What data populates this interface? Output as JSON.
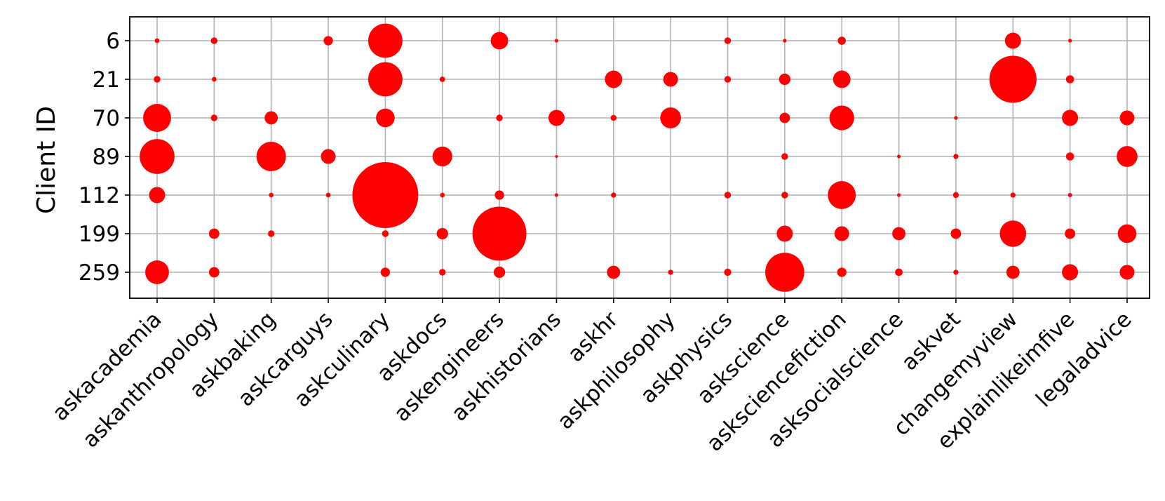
{
  "chart_data": {
    "type": "scatter",
    "ylabel": "Client ID",
    "xlabel": "",
    "title": "",
    "categories": [
      "askacademia",
      "askanthropology",
      "askbaking",
      "askcarguys",
      "askculinary",
      "askdocs",
      "askengineers",
      "askhistorians",
      "askhr",
      "askphilosophy",
      "askphysics",
      "askscience",
      "asksciencefiction",
      "asksocialscience",
      "askvet",
      "changemyview",
      "explainlikeimfive",
      "legaladvice"
    ],
    "clients": [
      "6",
      "21",
      "70",
      "89",
      "112",
      "199",
      "259"
    ],
    "grid": true,
    "marker_color": "#ff0000",
    "points": [
      {
        "x": "askacademia",
        "y": "6",
        "size": 0.5
      },
      {
        "x": "askacademia",
        "y": "21",
        "size": 1
      },
      {
        "x": "askacademia",
        "y": "70",
        "size": 18
      },
      {
        "x": "askacademia",
        "y": "89",
        "size": 28
      },
      {
        "x": "askacademia",
        "y": "112",
        "size": 6
      },
      {
        "x": "askacademia",
        "y": "259",
        "size": 13
      },
      {
        "x": "askanthropology",
        "y": "6",
        "size": 1
      },
      {
        "x": "askanthropology",
        "y": "21",
        "size": 0.5
      },
      {
        "x": "askanthropology",
        "y": "70",
        "size": 1
      },
      {
        "x": "askanthropology",
        "y": "199",
        "size": 2.5
      },
      {
        "x": "askanthropology",
        "y": "259",
        "size": 2.5
      },
      {
        "x": "askbaking",
        "y": "70",
        "size": 4
      },
      {
        "x": "askbaking",
        "y": "89",
        "size": 20
      },
      {
        "x": "askbaking",
        "y": "112",
        "size": 0.5
      },
      {
        "x": "askbaking",
        "y": "199",
        "size": 1
      },
      {
        "x": "askcarguys",
        "y": "6",
        "size": 2
      },
      {
        "x": "askcarguys",
        "y": "89",
        "size": 5
      },
      {
        "x": "askcarguys",
        "y": "112",
        "size": 0.5
      },
      {
        "x": "askculinary",
        "y": "6",
        "size": 27
      },
      {
        "x": "askculinary",
        "y": "21",
        "size": 27
      },
      {
        "x": "askculinary",
        "y": "70",
        "size": 8
      },
      {
        "x": "askculinary",
        "y": "112",
        "size": 100
      },
      {
        "x": "askculinary",
        "y": "199",
        "size": 1
      },
      {
        "x": "askculinary",
        "y": "259",
        "size": 2
      },
      {
        "x": "askdocs",
        "y": "21",
        "size": 0.7
      },
      {
        "x": "askdocs",
        "y": "89",
        "size": 9
      },
      {
        "x": "askdocs",
        "y": "112",
        "size": 0.5
      },
      {
        "x": "askdocs",
        "y": "199",
        "size": 3
      },
      {
        "x": "askdocs",
        "y": "259",
        "size": 1
      },
      {
        "x": "askengineers",
        "y": "6",
        "size": 7
      },
      {
        "x": "askengineers",
        "y": "70",
        "size": 1
      },
      {
        "x": "askengineers",
        "y": "112",
        "size": 2
      },
      {
        "x": "askengineers",
        "y": "199",
        "size": 67
      },
      {
        "x": "askengineers",
        "y": "259",
        "size": 3
      },
      {
        "x": "askhistorians",
        "y": "6",
        "size": 0.3
      },
      {
        "x": "askhistorians",
        "y": "70",
        "size": 6
      },
      {
        "x": "askhistorians",
        "y": "89",
        "size": 0.2
      },
      {
        "x": "askhistorians",
        "y": "112",
        "size": 0.3
      },
      {
        "x": "askhr",
        "y": "21",
        "size": 7
      },
      {
        "x": "askhr",
        "y": "70",
        "size": 0.8
      },
      {
        "x": "askhr",
        "y": "112",
        "size": 0.6
      },
      {
        "x": "askhr",
        "y": "259",
        "size": 4
      },
      {
        "x": "askphilosophy",
        "y": "21",
        "size": 5
      },
      {
        "x": "askphilosophy",
        "y": "70",
        "size": 10
      },
      {
        "x": "askphilosophy",
        "y": "259",
        "size": 0.6
      },
      {
        "x": "askphysics",
        "y": "6",
        "size": 1
      },
      {
        "x": "askphysics",
        "y": "21",
        "size": 1
      },
      {
        "x": "askphysics",
        "y": "112",
        "size": 1
      },
      {
        "x": "askphysics",
        "y": "259",
        "size": 1.2
      },
      {
        "x": "askscience",
        "y": "6",
        "size": 0.3
      },
      {
        "x": "askscience",
        "y": "21",
        "size": 3
      },
      {
        "x": "askscience",
        "y": "70",
        "size": 2.5
      },
      {
        "x": "askscience",
        "y": "89",
        "size": 1
      },
      {
        "x": "askscience",
        "y": "112",
        "size": 1
      },
      {
        "x": "askscience",
        "y": "199",
        "size": 6
      },
      {
        "x": "askscience",
        "y": "259",
        "size": 35
      },
      {
        "x": "asksciencefiction",
        "y": "6",
        "size": 1.5
      },
      {
        "x": "asksciencefiction",
        "y": "21",
        "size": 7
      },
      {
        "x": "asksciencefiction",
        "y": "70",
        "size": 14
      },
      {
        "x": "asksciencefiction",
        "y": "112",
        "size": 18
      },
      {
        "x": "asksciencefiction",
        "y": "199",
        "size": 5
      },
      {
        "x": "asksciencefiction",
        "y": "259",
        "size": 2
      },
      {
        "x": "asksocialscience",
        "y": "89",
        "size": 0.3
      },
      {
        "x": "asksocialscience",
        "y": "112",
        "size": 0.3
      },
      {
        "x": "asksocialscience",
        "y": "199",
        "size": 4
      },
      {
        "x": "asksocialscience",
        "y": "259",
        "size": 1.3
      },
      {
        "x": "askvet",
        "y": "70",
        "size": 0.3
      },
      {
        "x": "askvet",
        "y": "89",
        "size": 0.6
      },
      {
        "x": "askvet",
        "y": "112",
        "size": 0.8
      },
      {
        "x": "askvet",
        "y": "199",
        "size": 2.5
      },
      {
        "x": "askvet",
        "y": "259",
        "size": 0.6
      },
      {
        "x": "changemyview",
        "y": "6",
        "size": 6
      },
      {
        "x": "changemyview",
        "y": "21",
        "size": 51
      },
      {
        "x": "changemyview",
        "y": "112",
        "size": 0.6
      },
      {
        "x": "changemyview",
        "y": "199",
        "size": 16
      },
      {
        "x": "changemyview",
        "y": "259",
        "size": 4
      },
      {
        "x": "explainlikeimfive",
        "y": "6",
        "size": 0.3
      },
      {
        "x": "explainlikeimfive",
        "y": "21",
        "size": 1.5
      },
      {
        "x": "explainlikeimfive",
        "y": "70",
        "size": 6
      },
      {
        "x": "explainlikeimfive",
        "y": "89",
        "size": 1.5
      },
      {
        "x": "explainlikeimfive",
        "y": "112",
        "size": 0.4
      },
      {
        "x": "explainlikeimfive",
        "y": "199",
        "size": 2.5
      },
      {
        "x": "explainlikeimfive",
        "y": "259",
        "size": 6
      },
      {
        "x": "legaladvice",
        "y": "70",
        "size": 5
      },
      {
        "x": "legaladvice",
        "y": "89",
        "size": 10
      },
      {
        "x": "legaladvice",
        "y": "199",
        "size": 8
      },
      {
        "x": "legaladvice",
        "y": "259",
        "size": 5
      }
    ]
  }
}
